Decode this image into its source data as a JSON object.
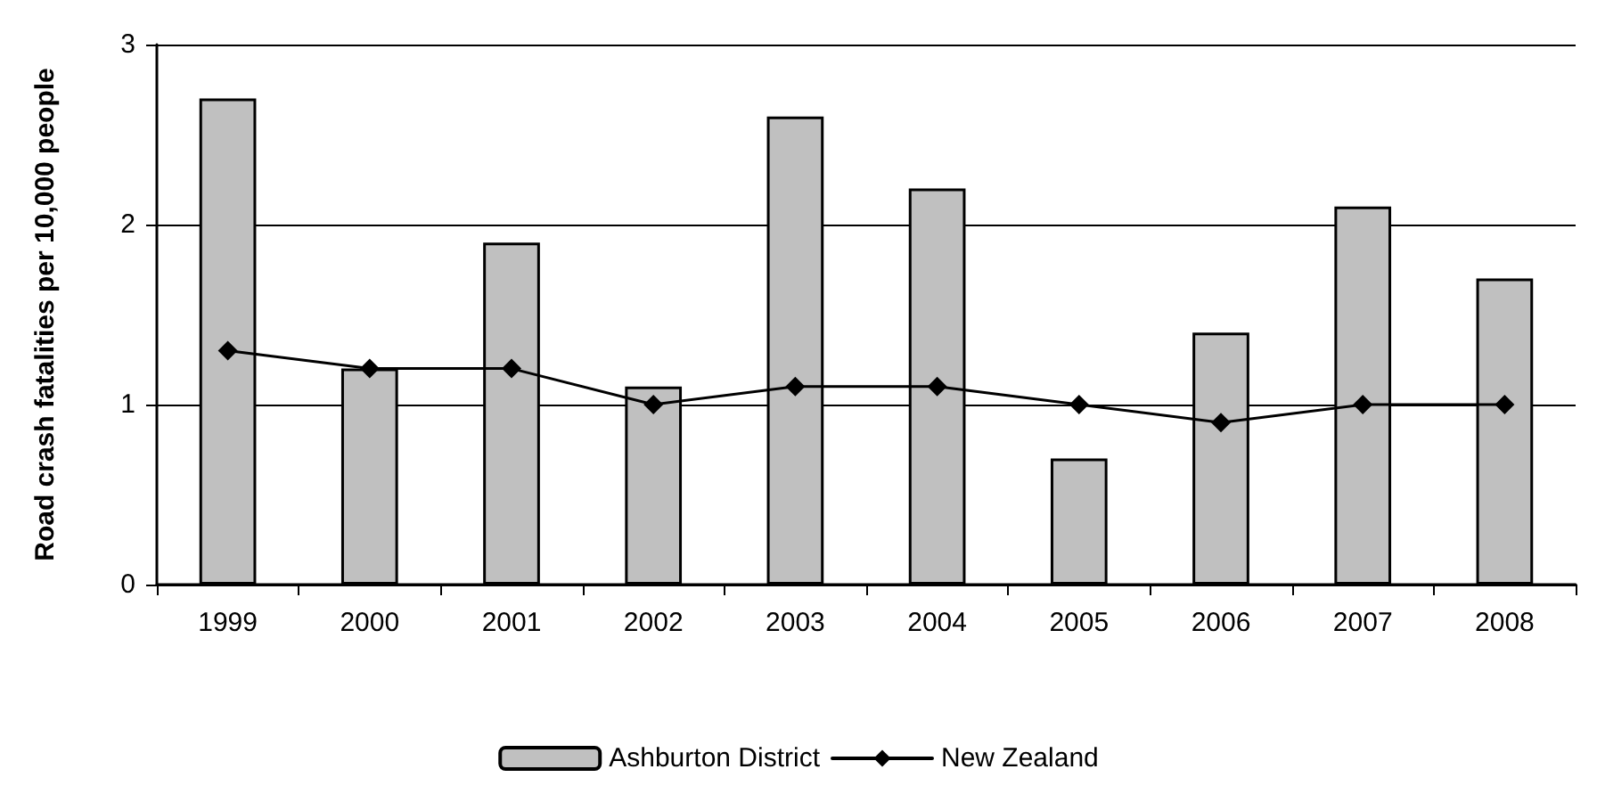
{
  "chart_data": {
    "type": "bar",
    "ylabel": "Road crash fatalities per 10,000 people",
    "categories": [
      "1999",
      "2000",
      "2001",
      "2002",
      "2003",
      "2004",
      "2005",
      "2006",
      "2007",
      "2008"
    ],
    "series": [
      {
        "name": "Ashburton District",
        "color": "#c0c0c0",
        "values": [
          2.7,
          1.2,
          1.9,
          1.1,
          2.6,
          2.2,
          0.7,
          1.4,
          2.1,
          1.7
        ]
      },
      {
        "name": "New Zealand",
        "type": "line",
        "color": "#000000",
        "values": [
          1.3,
          1.2,
          1.2,
          1.0,
          1.1,
          1.1,
          1.0,
          0.9,
          1.0,
          1.0
        ]
      }
    ],
    "ylim": [
      0,
      3
    ],
    "yticks": [
      0,
      1,
      2,
      3
    ],
    "grid": "y",
    "legend": "bottom",
    "marker": "diamond",
    "line_style": "solid"
  }
}
